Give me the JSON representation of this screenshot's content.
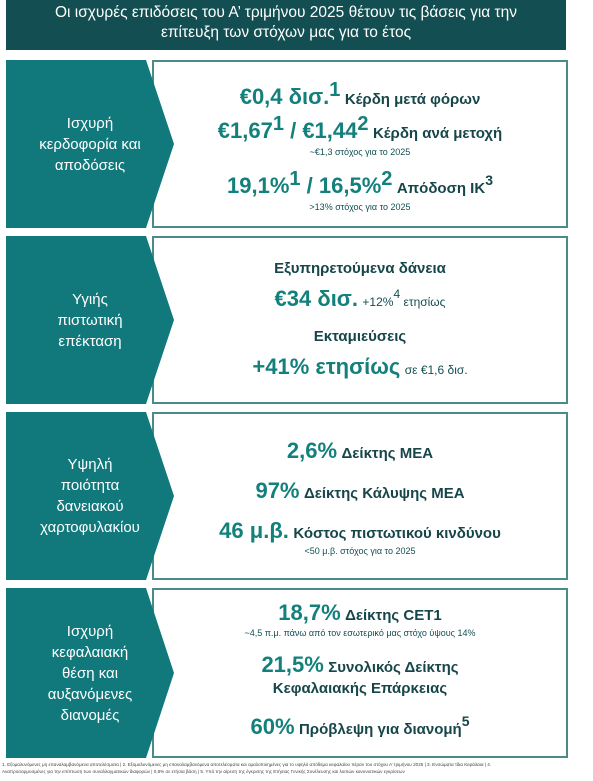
{
  "header": {
    "line1": "Οι ισχυρές επιδόσεις του Α’ τριμήνου 2025 θέτουν τις βάσεις για την",
    "line2": "επίτευξη των στόχων μας για το έτος"
  },
  "panels": [
    {
      "label": [
        "Ισχυρή",
        "κερδοφορία και",
        "αποδόσεις"
      ],
      "metrics": [
        {
          "value": "€0,4 δισ.",
          "note": "1",
          "text": "Κέρδη μετά φόρων"
        },
        {
          "value_a": "€1,67",
          "note_a": "1",
          "sep": " / ",
          "value_b": "€1,44",
          "note_b": "2",
          "text": "Κέρδη ανά μετοχή",
          "sub": "~€1,3 στόχος για το 2025"
        },
        {
          "value_a": "19,1%",
          "note_a": "1",
          "sep": " / ",
          "value_b": "16,5%",
          "note_b": "2",
          "text": "Απόδοση ΙΚ",
          "text_note": "3",
          "sub": ">13% στόχος για το 2025"
        }
      ]
    },
    {
      "label": [
        "Υγιής",
        "πιστωτική",
        "επέκταση"
      ],
      "metrics": [
        {
          "text": "Εξυπηρετούμενα δάνεια"
        },
        {
          "value": "€34 δισ.",
          "text": "+12%",
          "text_note": "4",
          "text_after": " ετησίως"
        },
        {
          "text": "Εκταμιεύσεις"
        },
        {
          "value": "+41% ετησίως",
          "text": "σε €1,6 δισ."
        }
      ]
    },
    {
      "label": [
        "Υψηλή",
        "ποιότητα",
        "δανειακού",
        "χαρτοφυλακίου"
      ],
      "metrics": [
        {
          "value": "2,6%",
          "text": "Δείκτης ΜΕΑ"
        },
        {
          "value": "97%",
          "text": "Δείκτης Κάλυψης ΜΕΑ"
        },
        {
          "value": "46 μ.β.",
          "text": "Κόστος πιστωτικού κινδύνου",
          "sub": "<50 μ.β. στόχος για το 2025"
        }
      ]
    },
    {
      "label": [
        "Ισχυρή",
        "κεφαλαιακή",
        "θέση και",
        "αυξανόμενες",
        "διανομές"
      ],
      "metrics": [
        {
          "value": "18,7%",
          "text": "Δείκτης CET1",
          "sub": "~4,5 π.μ. πάνω από τον εσωτερικό μας στόχο ύψους 14%"
        },
        {
          "value": "21,5%",
          "text": "Συνολικός Δείκτης",
          "text2": "Κεφαλαιακής Επάρκειας"
        },
        {
          "value": "60%",
          "text": "Πρόβλεψη για διανομή",
          "text_note": "5"
        }
      ]
    }
  ],
  "footnotes": {
    "line1": "1. Εξομαλυνόμενες μη επαναλαμβανόμενα αποτελέσματα | 2. Εξομαλυνόμενες μη επαναλαμβανόμενα αποτελέσματα και ομαλοποιημένες για το υψηλό απόθεμα κεφαλαίου πέραν του στόχου Α’ τριμήνου 2025 | 3. Ενσώματα Ίδια Κεφάλαια | 4.",
    "line2": "Αναπροσαρμοσμένες για την επίπτωση των συναλλαγματικών διαφορών | 0,8% σε ετήσια βάση | 5. Υπό την αίρεση της έγκρισης της Ετήσιας Γενικής Συνέλευσης και λοιπών κανονιστικών εγκρίσεων"
  }
}
